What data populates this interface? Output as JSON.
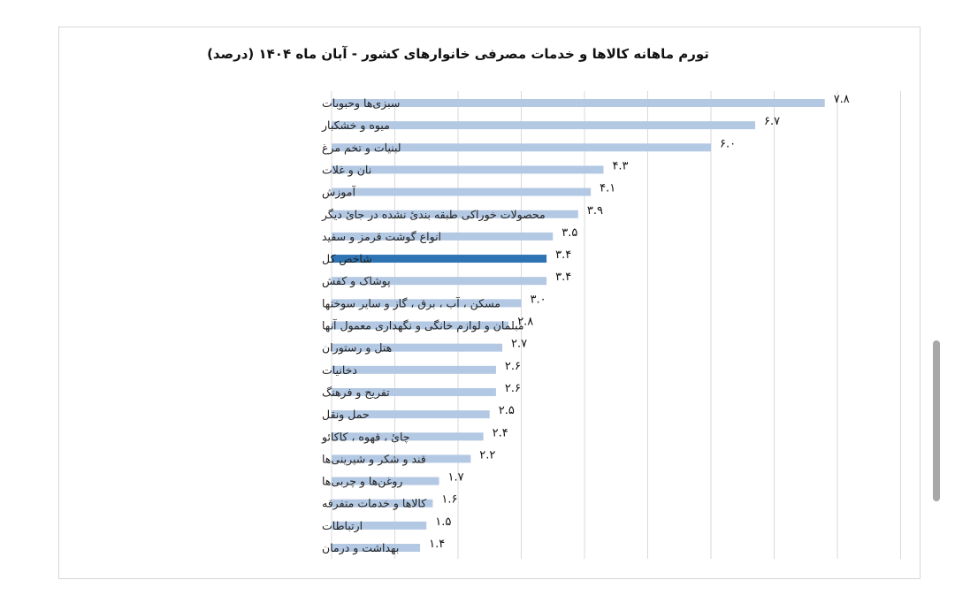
{
  "chart_data": {
    "type": "bar",
    "orientation": "horizontal",
    "title": "تورم ماهانه کالاها و خدمات مصرفی خانوارهای کشور - آبان ماه ۱۴۰۴ (درصد)",
    "xlim": [
      0,
      9
    ],
    "grid": true,
    "categories": [
      "سبزی‌ها وحبوبات",
      "میوه و خشکبار",
      "لبنیات و تخم مرغ",
      "نان و غلات",
      "آموزش",
      "محصولات خوراکی طبقه بندیٔ نشده در جایٔ دیگر",
      "انواع گوشت قرمز و سفید",
      "شاخص کل",
      "پوشاک و کفش",
      "مسکن ، آب ، برق ، گاز و سایر سوختها",
      "مبلمان و لوازم خانگی و نگهداری معمول آنها",
      "هتل و رستوران",
      "دخانیات",
      "تفریح و فرهنگ",
      "حمل ونقل",
      "چایٔ ، قهوه ، کاکائو",
      "قند و شکر و شیرینی‌ها",
      "روغن‌ها و چربی‌ها",
      "کالاها و خدمات متفرقه",
      "ارتباطات",
      "بهداشت و درمان"
    ],
    "values": [
      7.8,
      6.7,
      6.0,
      4.3,
      4.1,
      3.9,
      3.5,
      3.4,
      3.4,
      3.0,
      2.8,
      2.7,
      2.6,
      2.6,
      2.5,
      2.4,
      2.2,
      1.7,
      1.6,
      1.5,
      1.4
    ],
    "value_labels": [
      "۷.۸",
      "۶.۷",
      "۶.۰",
      "۴.۳",
      "۴.۱",
      "۳.۹",
      "۳.۵",
      "۳.۴",
      "۳.۴",
      "۳.۰",
      "۲.۸",
      "۲.۷",
      "۲.۶",
      "۲.۶",
      "۲.۵",
      "۲.۴",
      "۲.۲",
      "۱.۷",
      "۱.۶",
      "۱.۵",
      "۱.۴"
    ],
    "highlight_category": "شاخص کل",
    "colors": {
      "bar": "#b3c8e3",
      "highlight": "#2e74b5",
      "grid": "#d9d9d9"
    }
  }
}
